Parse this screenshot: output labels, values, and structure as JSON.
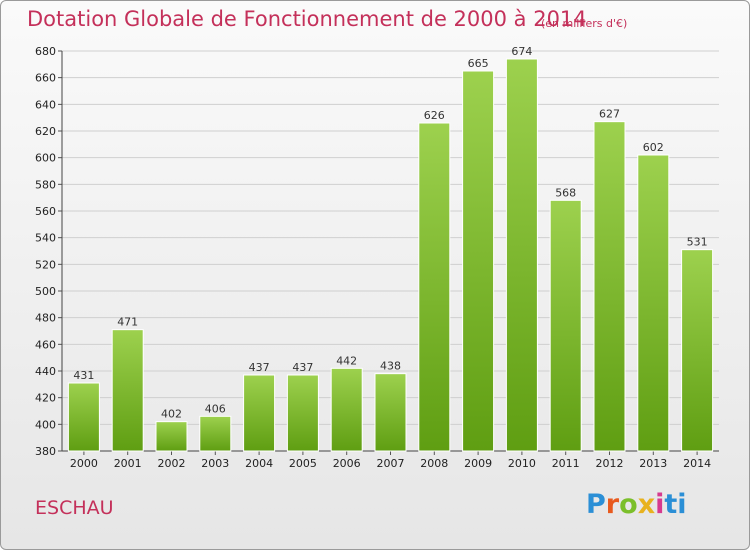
{
  "header": {
    "title": "Dotation Globale de Fonctionnement de 2000 à 2014",
    "subtitle": "(en milliers d'€)"
  },
  "footer": {
    "commune": "ESCHAU",
    "logo_letters": [
      "P",
      "r",
      "o",
      "x",
      "i",
      "t",
      "i"
    ]
  },
  "colors": {
    "title": "#c4305a",
    "bar_top": "#9dd14e",
    "bar_bottom": "#5f9e12",
    "grid": "#cfcfcf"
  },
  "chart_data": {
    "type": "bar",
    "title": "Dotation Globale de Fonctionnement de 2000 à 2014",
    "subtitle": "(en milliers d'€)",
    "xlabel": "",
    "ylabel": "",
    "categories": [
      "2000",
      "2001",
      "2002",
      "2003",
      "2004",
      "2005",
      "2006",
      "2007",
      "2008",
      "2009",
      "2010",
      "2011",
      "2012",
      "2013",
      "2014"
    ],
    "values": [
      431,
      471,
      402,
      406,
      437,
      437,
      442,
      438,
      626,
      665,
      674,
      568,
      627,
      602,
      531
    ],
    "ylim": [
      380,
      680
    ],
    "yticks": [
      380,
      400,
      420,
      440,
      460,
      480,
      500,
      520,
      540,
      560,
      580,
      600,
      620,
      640,
      660,
      680
    ],
    "grid": true,
    "legend": "none"
  }
}
